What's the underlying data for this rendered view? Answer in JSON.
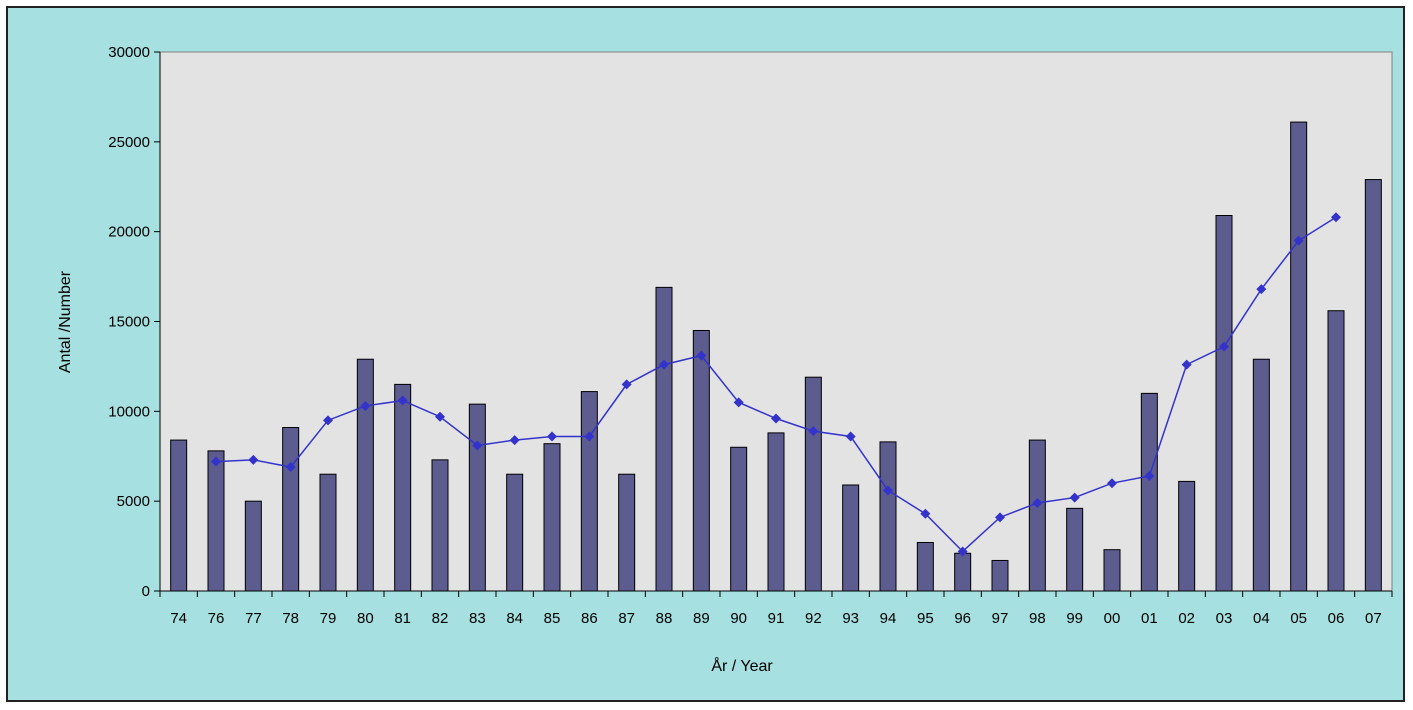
{
  "chart_data": {
    "type": "bar",
    "title": "",
    "xlabel": "År / Year",
    "ylabel": "Antal /Number",
    "ylim": [
      0,
      30000
    ],
    "yticks": [
      0,
      5000,
      10000,
      15000,
      20000,
      25000,
      30000
    ],
    "grid": false,
    "legend": "none",
    "categories": [
      "74",
      "76",
      "77",
      "78",
      "79",
      "80",
      "81",
      "82",
      "83",
      "84",
      "85",
      "86",
      "87",
      "88",
      "89",
      "90",
      "91",
      "92",
      "93",
      "94",
      "95",
      "96",
      "97",
      "98",
      "99",
      "00",
      "01",
      "02",
      "03",
      "04",
      "05",
      "06",
      "07"
    ],
    "series": [
      {
        "type": "bar",
        "color": "#5c5c8e",
        "values": [
          8400,
          7800,
          5000,
          9100,
          6500,
          12900,
          11500,
          7300,
          10400,
          6500,
          8200,
          11100,
          6500,
          16900,
          14500,
          8000,
          8800,
          11900,
          5900,
          8300,
          2700,
          2100,
          1700,
          8400,
          4600,
          2300,
          11000,
          6100,
          20900,
          12900,
          26100,
          15600,
          22900
        ]
      },
      {
        "type": "line",
        "color": "#3333cc",
        "values": [
          null,
          7200,
          7300,
          6900,
          9500,
          10300,
          10600,
          9700,
          8100,
          8400,
          8600,
          8600,
          11500,
          12600,
          13100,
          10500,
          9600,
          8900,
          8600,
          5600,
          4300,
          2200,
          4100,
          4900,
          5200,
          6000,
          6400,
          12600,
          13600,
          16800,
          19500,
          20800,
          null
        ]
      }
    ]
  }
}
